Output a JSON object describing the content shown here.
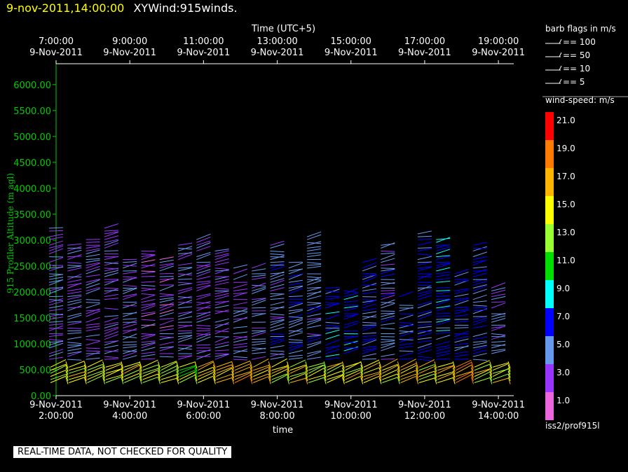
{
  "header": {
    "date_label": "9-nov-2011,14:00:00",
    "title": "XYWind:915winds."
  },
  "footer": {
    "notice": "REAL-TIME DATA, NOT CHECKED FOR QUALITY"
  },
  "colors": {
    "axis_y": "#00cc00",
    "axis_x": "#ffffff",
    "background": "#000000"
  },
  "legend": {
    "barb_title": "barb flags in m/s",
    "barbs": [
      "== 100",
      "== 50",
      "== 10",
      "== 5"
    ],
    "speed_title": "wind-speed: m/s",
    "speed_scale": [
      {
        "label": "21.0",
        "color": "#ff0000"
      },
      {
        "label": "19.0",
        "color": "#ff7a00"
      },
      {
        "label": "17.0",
        "color": "#ffb400"
      },
      {
        "label": "15.0",
        "color": "#ffff00"
      },
      {
        "label": "13.0",
        "color": "#99ff33"
      },
      {
        "label": "11.0",
        "color": "#00dd00"
      },
      {
        "label": "9.0",
        "color": "#00ffff"
      },
      {
        "label": "7.0",
        "color": "#0000ff"
      },
      {
        "label": "5.0",
        "color": "#6699ee"
      },
      {
        "label": "3.0",
        "color": "#9933ff"
      },
      {
        "label": "1.0",
        "color": "#ee66dd"
      }
    ],
    "source": "iss2/prof915l"
  },
  "chart_data": {
    "type": "scatter",
    "title": "",
    "xlabel": "time",
    "x2label": "Time (UTC+5)",
    "ylabel": "915 Profiler Altitude (m agl)",
    "ylim": [
      0,
      6200
    ],
    "yticks": [
      "0.00",
      "500.00",
      "1000.00",
      "1500.00",
      "2000.00",
      "2500.00",
      "3000.00",
      "3500.00",
      "4000.00",
      "4500.00",
      "5000.00",
      "5500.00",
      "6000.00"
    ],
    "xlim": [
      "9-Nov-2011 2:00:00",
      "9-Nov-2011 14:25:00"
    ],
    "xticks_bottom": [
      {
        "date": "9-Nov-2011",
        "time": "2:00:00"
      },
      {
        "date": "9-Nov-2011",
        "time": "4:00:00"
      },
      {
        "date": "9-Nov-2011",
        "time": "6:00:00"
      },
      {
        "date": "9-Nov-2011",
        "time": "8:00:00"
      },
      {
        "date": "9-Nov-2011",
        "time": "10:00:00"
      },
      {
        "date": "9-Nov-2011",
        "time": "12:00:00"
      },
      {
        "date": "9-Nov-2011",
        "time": "14:00:00"
      }
    ],
    "xticks_top": [
      {
        "date": "9-Nov-2011",
        "time": "7:00:00"
      },
      {
        "date": "9-Nov-2011",
        "time": "9:00:00"
      },
      {
        "date": "9-Nov-2011",
        "time": "11:00:00"
      },
      {
        "date": "9-Nov-2011",
        "time": "13:00:00"
      },
      {
        "date": "9-Nov-2011",
        "time": "15:00:00"
      },
      {
        "date": "9-Nov-2011",
        "time": "17:00:00"
      },
      {
        "date": "9-Nov-2011",
        "time": "19:00:00"
      }
    ],
    "profiles": [
      {
        "time": "2:00",
        "top": 3250,
        "speed": 4,
        "low_speed": 15
      },
      {
        "time": "2:30",
        "top": 2900,
        "speed": 4,
        "low_speed": 15
      },
      {
        "time": "3:00",
        "top": 3050,
        "speed": 4,
        "low_speed": 14
      },
      {
        "time": "3:30",
        "top": 3250,
        "speed": 3.5,
        "low_speed": 15
      },
      {
        "time": "4:00",
        "top": 2650,
        "speed": 4,
        "low_speed": 15
      },
      {
        "time": "4:30",
        "top": 2800,
        "speed": 3,
        "low_speed": 14
      },
      {
        "time": "5:00",
        "top": 2700,
        "speed": 3,
        "low_speed": 14
      },
      {
        "time": "5:30",
        "top": 2900,
        "speed": 4,
        "low_speed": 13
      },
      {
        "time": "6:00",
        "top": 3050,
        "speed": 3.5,
        "low_speed": 16
      },
      {
        "time": "6:30",
        "top": 2800,
        "speed": 3.5,
        "low_speed": 17
      },
      {
        "time": "7:00",
        "top": 2600,
        "speed": 4,
        "low_speed": 18
      },
      {
        "time": "7:30",
        "top": 2500,
        "speed": 4.5,
        "low_speed": 15
      },
      {
        "time": "8:00",
        "top": 2950,
        "speed": 5,
        "low_speed": 15
      },
      {
        "time": "8:30",
        "top": 2600,
        "speed": 5.5,
        "low_speed": 15
      },
      {
        "time": "9:00",
        "top": 3100,
        "speed": 5,
        "low_speed": 14
      },
      {
        "time": "9:30",
        "top": 2100,
        "speed": 7,
        "low_speed": 15
      },
      {
        "time": "10:00",
        "top": 2050,
        "speed": 7,
        "low_speed": 15
      },
      {
        "time": "10:30",
        "top": 2600,
        "speed": 6,
        "low_speed": 16
      },
      {
        "time": "11:00",
        "top": 2900,
        "speed": 5,
        "low_speed": 15
      },
      {
        "time": "11:30",
        "top": 2000,
        "speed": 6,
        "low_speed": 16
      },
      {
        "time": "12:00",
        "top": 3200,
        "speed": 6.5,
        "low_speed": 15
      },
      {
        "time": "12:30",
        "top": 3050,
        "speed": 7,
        "low_speed": 16
      },
      {
        "time": "13:00",
        "top": 2400,
        "speed": 6,
        "low_speed": 18
      },
      {
        "time": "13:30",
        "top": 2950,
        "speed": 6,
        "low_speed": 15
      },
      {
        "time": "14:00",
        "top": 2100,
        "speed": 4,
        "low_speed": 15
      }
    ]
  }
}
